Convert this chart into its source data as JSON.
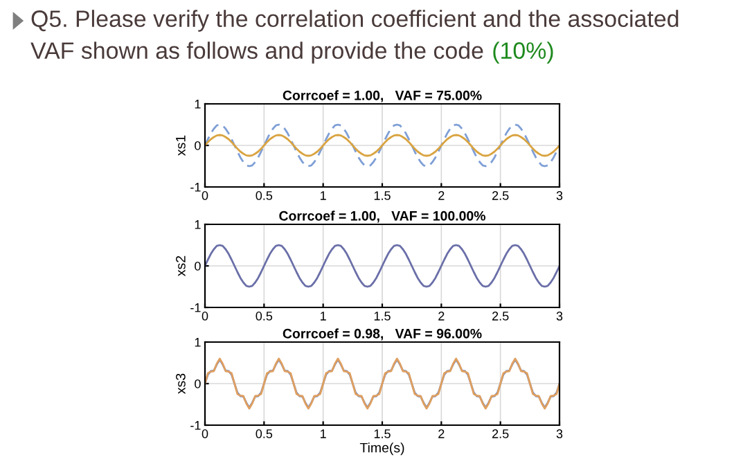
{
  "chart_data": [
    {
      "type": "other",
      "title": "Q5. Please verify the correlation coefficient and the associated\nVAF shown as follows and provide the code",
      "annotations": [
        "(10%)"
      ]
    },
    {
      "type": "line",
      "title": "Corrcoef = 1.00,   VAF = 75.00%",
      "ylabel": "xs1",
      "xlim": [
        0,
        3
      ],
      "ylim": [
        -1,
        1
      ],
      "xticks": [
        0,
        0.5,
        1,
        1.5,
        2,
        2.5,
        3
      ],
      "yticks": [
        -1,
        0,
        1
      ],
      "grid": true,
      "x": [
        0,
        0.025,
        0.05,
        0.075,
        0.1,
        0.125,
        0.15,
        0.175,
        0.2,
        0.225,
        0.25,
        0.275,
        0.3,
        0.325,
        0.35,
        0.375,
        0.4,
        0.425,
        0.45,
        0.475,
        0.5,
        0.525,
        0.55,
        0.575,
        0.6,
        0.625,
        0.65,
        0.675,
        0.7,
        0.725,
        0.75,
        0.775,
        0.8,
        0.825,
        0.85,
        0.875,
        0.9,
        0.925,
        0.95,
        0.975,
        1,
        1.025,
        1.05,
        1.075,
        1.1,
        1.125,
        1.15,
        1.175,
        1.2,
        1.225,
        1.25,
        1.275,
        1.3,
        1.325,
        1.35,
        1.375,
        1.4,
        1.425,
        1.45,
        1.475,
        1.5,
        1.525,
        1.55,
        1.575,
        1.6,
        1.625,
        1.65,
        1.675,
        1.7,
        1.725,
        1.75,
        1.775,
        1.8,
        1.825,
        1.85,
        1.875,
        1.9,
        1.925,
        1.95,
        1.975,
        2,
        2.025,
        2.05,
        2.075,
        2.1,
        2.125,
        2.15,
        2.175,
        2.2,
        2.225,
        2.25,
        2.275,
        2.3,
        2.325,
        2.35,
        2.375,
        2.4,
        2.425,
        2.45,
        2.475,
        2.5,
        2.525,
        2.55,
        2.575,
        2.6,
        2.625,
        2.65,
        2.675,
        2.7,
        2.725,
        2.75,
        2.775,
        2.8,
        2.825,
        2.85,
        2.875,
        2.9,
        2.925,
        2.95,
        2.975,
        3
      ],
      "series": [
        {
          "color": "#7f9fd6",
          "line_style": "dashed",
          "values": [
            0,
            0.15,
            0.29,
            0.4,
            0.48,
            0.5,
            0.48,
            0.4,
            0.29,
            0.15,
            0,
            -0.15,
            -0.29,
            -0.4,
            -0.48,
            -0.5,
            -0.48,
            -0.4,
            -0.29,
            -0.15,
            0,
            0.15,
            0.29,
            0.4,
            0.48,
            0.5,
            0.48,
            0.4,
            0.29,
            0.15,
            0,
            -0.15,
            -0.29,
            -0.4,
            -0.48,
            -0.5,
            -0.48,
            -0.4,
            -0.29,
            -0.15,
            0,
            0.15,
            0.29,
            0.4,
            0.48,
            0.5,
            0.48,
            0.4,
            0.29,
            0.15,
            0,
            -0.15,
            -0.29,
            -0.4,
            -0.48,
            -0.5,
            -0.48,
            -0.4,
            -0.29,
            -0.15,
            0,
            0.15,
            0.29,
            0.4,
            0.48,
            0.5,
            0.48,
            0.4,
            0.29,
            0.15,
            0,
            -0.15,
            -0.29,
            -0.4,
            -0.48,
            -0.5,
            -0.48,
            -0.4,
            -0.29,
            -0.15,
            0,
            0.15,
            0.29,
            0.4,
            0.48,
            0.5,
            0.48,
            0.4,
            0.29,
            0.15,
            0,
            -0.15,
            -0.29,
            -0.4,
            -0.48,
            -0.5,
            -0.48,
            -0.4,
            -0.29,
            -0.15,
            0,
            0.15,
            0.29,
            0.4,
            0.48,
            0.5,
            0.48,
            0.4,
            0.29,
            0.15,
            0,
            -0.15,
            -0.29,
            -0.4,
            -0.48,
            -0.5,
            -0.48,
            -0.4,
            -0.29,
            -0.15,
            0
          ]
        },
        {
          "color": "#d9a441",
          "line_style": "solid",
          "values": [
            0,
            0.08,
            0.15,
            0.2,
            0.24,
            0.25,
            0.24,
            0.2,
            0.15,
            0.08,
            0,
            -0.08,
            -0.15,
            -0.2,
            -0.24,
            -0.25,
            -0.24,
            -0.2,
            -0.15,
            -0.08,
            0,
            0.08,
            0.15,
            0.2,
            0.24,
            0.25,
            0.24,
            0.2,
            0.15,
            0.08,
            0,
            -0.08,
            -0.15,
            -0.2,
            -0.24,
            -0.25,
            -0.24,
            -0.2,
            -0.15,
            -0.08,
            0,
            0.08,
            0.15,
            0.2,
            0.24,
            0.25,
            0.24,
            0.2,
            0.15,
            0.08,
            0,
            -0.08,
            -0.15,
            -0.2,
            -0.24,
            -0.25,
            -0.24,
            -0.2,
            -0.15,
            -0.08,
            0,
            0.08,
            0.15,
            0.2,
            0.24,
            0.25,
            0.24,
            0.2,
            0.15,
            0.08,
            0,
            -0.08,
            -0.15,
            -0.2,
            -0.24,
            -0.25,
            -0.24,
            -0.2,
            -0.15,
            -0.08,
            0,
            0.08,
            0.15,
            0.2,
            0.24,
            0.25,
            0.24,
            0.2,
            0.15,
            0.08,
            0,
            -0.08,
            -0.15,
            -0.2,
            -0.24,
            -0.25,
            -0.24,
            -0.2,
            -0.15,
            -0.08,
            0,
            0.08,
            0.15,
            0.2,
            0.24,
            0.25,
            0.24,
            0.2,
            0.15,
            0.08,
            0,
            -0.08,
            -0.15,
            -0.2,
            -0.24,
            -0.25,
            -0.24,
            -0.2,
            -0.15,
            -0.08,
            0
          ]
        }
      ]
    },
    {
      "type": "line",
      "title": "Corrcoef = 1.00,   VAF = 100.00%",
      "ylabel": "xs2",
      "xlim": [
        0,
        3
      ],
      "ylim": [
        -1,
        1
      ],
      "xticks": [
        0,
        0.5,
        1,
        1.5,
        2,
        2.5,
        3
      ],
      "yticks": [
        -1,
        0,
        1
      ],
      "grid": true,
      "x": [
        0,
        0.025,
        0.05,
        0.075,
        0.1,
        0.125,
        0.15,
        0.175,
        0.2,
        0.225,
        0.25,
        0.275,
        0.3,
        0.325,
        0.35,
        0.375,
        0.4,
        0.425,
        0.45,
        0.475,
        0.5,
        0.525,
        0.55,
        0.575,
        0.6,
        0.625,
        0.65,
        0.675,
        0.7,
        0.725,
        0.75,
        0.775,
        0.8,
        0.825,
        0.85,
        0.875,
        0.9,
        0.925,
        0.95,
        0.975,
        1,
        1.025,
        1.05,
        1.075,
        1.1,
        1.125,
        1.15,
        1.175,
        1.2,
        1.225,
        1.25,
        1.275,
        1.3,
        1.325,
        1.35,
        1.375,
        1.4,
        1.425,
        1.45,
        1.475,
        1.5,
        1.525,
        1.55,
        1.575,
        1.6,
        1.625,
        1.65,
        1.675,
        1.7,
        1.725,
        1.75,
        1.775,
        1.8,
        1.825,
        1.85,
        1.875,
        1.9,
        1.925,
        1.95,
        1.975,
        2,
        2.025,
        2.05,
        2.075,
        2.1,
        2.125,
        2.15,
        2.175,
        2.2,
        2.225,
        2.25,
        2.275,
        2.3,
        2.325,
        2.35,
        2.375,
        2.4,
        2.425,
        2.45,
        2.475,
        2.5,
        2.525,
        2.55,
        2.575,
        2.6,
        2.625,
        2.65,
        2.675,
        2.7,
        2.725,
        2.75,
        2.775,
        2.8,
        2.825,
        2.85,
        2.875,
        2.9,
        2.925,
        2.95,
        2.975,
        3
      ],
      "series": [
        {
          "color": "#6a6fa8",
          "line_style": "solid",
          "values": [
            0,
            0.15,
            0.29,
            0.4,
            0.48,
            0.5,
            0.48,
            0.4,
            0.29,
            0.15,
            0,
            -0.15,
            -0.29,
            -0.4,
            -0.48,
            -0.5,
            -0.48,
            -0.4,
            -0.29,
            -0.15,
            0,
            0.15,
            0.29,
            0.4,
            0.48,
            0.5,
            0.48,
            0.4,
            0.29,
            0.15,
            0,
            -0.15,
            -0.29,
            -0.4,
            -0.48,
            -0.5,
            -0.48,
            -0.4,
            -0.29,
            -0.15,
            0,
            0.15,
            0.29,
            0.4,
            0.48,
            0.5,
            0.48,
            0.4,
            0.29,
            0.15,
            0,
            -0.15,
            -0.29,
            -0.4,
            -0.48,
            -0.5,
            -0.48,
            -0.4,
            -0.29,
            -0.15,
            0,
            0.15,
            0.29,
            0.4,
            0.48,
            0.5,
            0.48,
            0.4,
            0.29,
            0.15,
            0,
            -0.15,
            -0.29,
            -0.4,
            -0.48,
            -0.5,
            -0.48,
            -0.4,
            -0.29,
            -0.15,
            0,
            0.15,
            0.29,
            0.4,
            0.48,
            0.5,
            0.48,
            0.4,
            0.29,
            0.15,
            0,
            -0.15,
            -0.29,
            -0.4,
            -0.48,
            -0.5,
            -0.48,
            -0.4,
            -0.29,
            -0.15,
            0,
            0.15,
            0.29,
            0.4,
            0.48,
            0.5,
            0.48,
            0.4,
            0.29,
            0.15,
            0,
            -0.15,
            -0.29,
            -0.4,
            -0.48,
            -0.5,
            -0.48,
            -0.4,
            -0.29,
            -0.15,
            0
          ]
        }
      ]
    },
    {
      "type": "line",
      "title": "Corrcoef = 0.98,   VAF = 96.00%",
      "ylabel": "xs3",
      "xlabel": "Time(s)",
      "xlim": [
        0,
        3
      ],
      "ylim": [
        -1,
        1
      ],
      "xticks": [
        0,
        0.5,
        1,
        1.5,
        2,
        2.5,
        3
      ],
      "yticks": [
        -1,
        0,
        1
      ],
      "grid": true,
      "x": [
        0,
        0.025,
        0.05,
        0.075,
        0.1,
        0.125,
        0.15,
        0.175,
        0.2,
        0.225,
        0.25,
        0.275,
        0.3,
        0.325,
        0.35,
        0.375,
        0.4,
        0.425,
        0.45,
        0.475,
        0.5,
        0.525,
        0.55,
        0.575,
        0.6,
        0.625,
        0.65,
        0.675,
        0.7,
        0.725,
        0.75,
        0.775,
        0.8,
        0.825,
        0.85,
        0.875,
        0.9,
        0.925,
        0.95,
        0.975,
        1,
        1.025,
        1.05,
        1.075,
        1.1,
        1.125,
        1.15,
        1.175,
        1.2,
        1.225,
        1.25,
        1.275,
        1.3,
        1.325,
        1.35,
        1.375,
        1.4,
        1.425,
        1.45,
        1.475,
        1.5,
        1.525,
        1.55,
        1.575,
        1.6,
        1.625,
        1.65,
        1.675,
        1.7,
        1.725,
        1.75,
        1.775,
        1.8,
        1.825,
        1.85,
        1.875,
        1.9,
        1.925,
        1.95,
        1.975,
        2,
        2.025,
        2.05,
        2.075,
        2.1,
        2.125,
        2.15,
        2.175,
        2.2,
        2.225,
        2.25,
        2.275,
        2.3,
        2.325,
        2.35,
        2.375,
        2.4,
        2.425,
        2.45,
        2.475,
        2.5,
        2.525,
        2.55,
        2.575,
        2.6,
        2.625,
        2.65,
        2.675,
        2.7,
        2.725,
        2.75,
        2.775,
        2.8,
        2.825,
        2.85,
        2.875,
        2.9,
        2.925,
        2.95,
        2.975,
        3
      ],
      "series": [
        {
          "color": "#6a7fb8",
          "line_style": "solid",
          "values": [
            0,
            0.22,
            0.3,
            0.31,
            0.46,
            0.58,
            0.46,
            0.31,
            0.3,
            0.22,
            0,
            -0.22,
            -0.3,
            -0.31,
            -0.46,
            -0.58,
            -0.46,
            -0.31,
            -0.3,
            -0.22,
            0,
            0.22,
            0.3,
            0.31,
            0.46,
            0.58,
            0.46,
            0.31,
            0.3,
            0.22,
            0,
            -0.22,
            -0.3,
            -0.31,
            -0.46,
            -0.58,
            -0.46,
            -0.31,
            -0.3,
            -0.22,
            0,
            0.22,
            0.3,
            0.31,
            0.46,
            0.58,
            0.46,
            0.31,
            0.3,
            0.22,
            0,
            -0.22,
            -0.3,
            -0.31,
            -0.46,
            -0.58,
            -0.46,
            -0.31,
            -0.3,
            -0.22,
            0,
            0.22,
            0.3,
            0.31,
            0.46,
            0.58,
            0.46,
            0.31,
            0.3,
            0.22,
            0,
            -0.22,
            -0.3,
            -0.31,
            -0.46,
            -0.58,
            -0.46,
            -0.31,
            -0.3,
            -0.22,
            0,
            0.22,
            0.3,
            0.31,
            0.46,
            0.58,
            0.46,
            0.31,
            0.3,
            0.22,
            0,
            -0.22,
            -0.3,
            -0.31,
            -0.46,
            -0.58,
            -0.46,
            -0.31,
            -0.3,
            -0.22,
            0,
            0.22,
            0.3,
            0.31,
            0.46,
            0.58,
            0.46,
            0.31,
            0.3,
            0.22,
            0,
            -0.22,
            -0.3,
            -0.31,
            -0.46,
            -0.58,
            -0.46,
            -0.31,
            -0.3,
            -0.22,
            0
          ]
        },
        {
          "color": "#e0a060",
          "line_style": "solid",
          "values": [
            0,
            0.25,
            0.29,
            0.3,
            0.48,
            0.6,
            0.48,
            0.3,
            0.29,
            0.25,
            0,
            -0.25,
            -0.29,
            -0.3,
            -0.48,
            -0.6,
            -0.48,
            -0.3,
            -0.29,
            -0.25,
            0,
            0.25,
            0.29,
            0.3,
            0.48,
            0.6,
            0.48,
            0.3,
            0.29,
            0.25,
            0,
            -0.25,
            -0.29,
            -0.3,
            -0.48,
            -0.6,
            -0.48,
            -0.3,
            -0.29,
            -0.25,
            0,
            0.25,
            0.29,
            0.3,
            0.48,
            0.6,
            0.48,
            0.3,
            0.29,
            0.25,
            0,
            -0.25,
            -0.29,
            -0.3,
            -0.48,
            -0.6,
            -0.48,
            -0.3,
            -0.29,
            -0.25,
            0,
            0.25,
            0.29,
            0.3,
            0.48,
            0.6,
            0.48,
            0.3,
            0.29,
            0.25,
            0,
            -0.25,
            -0.29,
            -0.3,
            -0.48,
            -0.6,
            -0.48,
            -0.3,
            -0.29,
            -0.25,
            0,
            0.25,
            0.29,
            0.3,
            0.48,
            0.6,
            0.48,
            0.3,
            0.29,
            0.25,
            0,
            -0.25,
            -0.29,
            -0.3,
            -0.48,
            -0.6,
            -0.48,
            -0.3,
            -0.29,
            -0.25,
            0,
            0.25,
            0.29,
            0.3,
            0.48,
            0.6,
            0.48,
            0.3,
            0.29,
            0.25,
            0,
            -0.25,
            -0.29,
            -0.3,
            -0.48,
            -0.6,
            -0.48,
            -0.3,
            -0.29,
            -0.25,
            0
          ]
        }
      ]
    }
  ]
}
